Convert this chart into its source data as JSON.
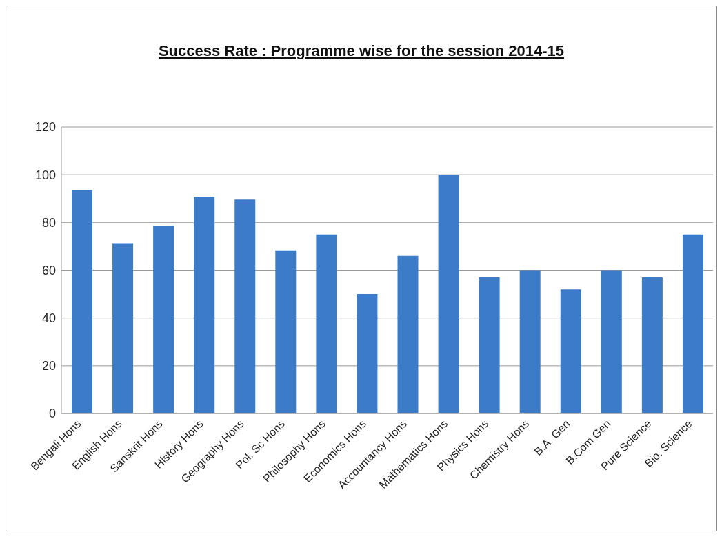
{
  "chart_data": {
    "type": "bar",
    "title": "Success Rate : Programme wise for the session 2014-15",
    "categories": [
      "Bengali Hons",
      "English Hons",
      "Sanskrit Hons",
      "History Hons",
      "Geography Hons",
      "Pol. Sc Hons",
      "Philosophy Hons",
      "Economics Hons",
      "Accountancy Hons",
      "Mathematics Hons",
      "Physics Hons",
      "Chemistry Hons",
      "B.A. Gen",
      "B.Com Gen",
      "Pure Science",
      "Bio. Science"
    ],
    "values": [
      93.7,
      71.3,
      78.6,
      90.7,
      89.6,
      68.3,
      75,
      50,
      66,
      100,
      57,
      60,
      52,
      60,
      57,
      75
    ],
    "color": "#3b7bc8",
    "ylim": [
      0,
      120
    ],
    "yticks": [
      0,
      20,
      40,
      60,
      80,
      100,
      120
    ],
    "grid": "y",
    "legend": false
  }
}
